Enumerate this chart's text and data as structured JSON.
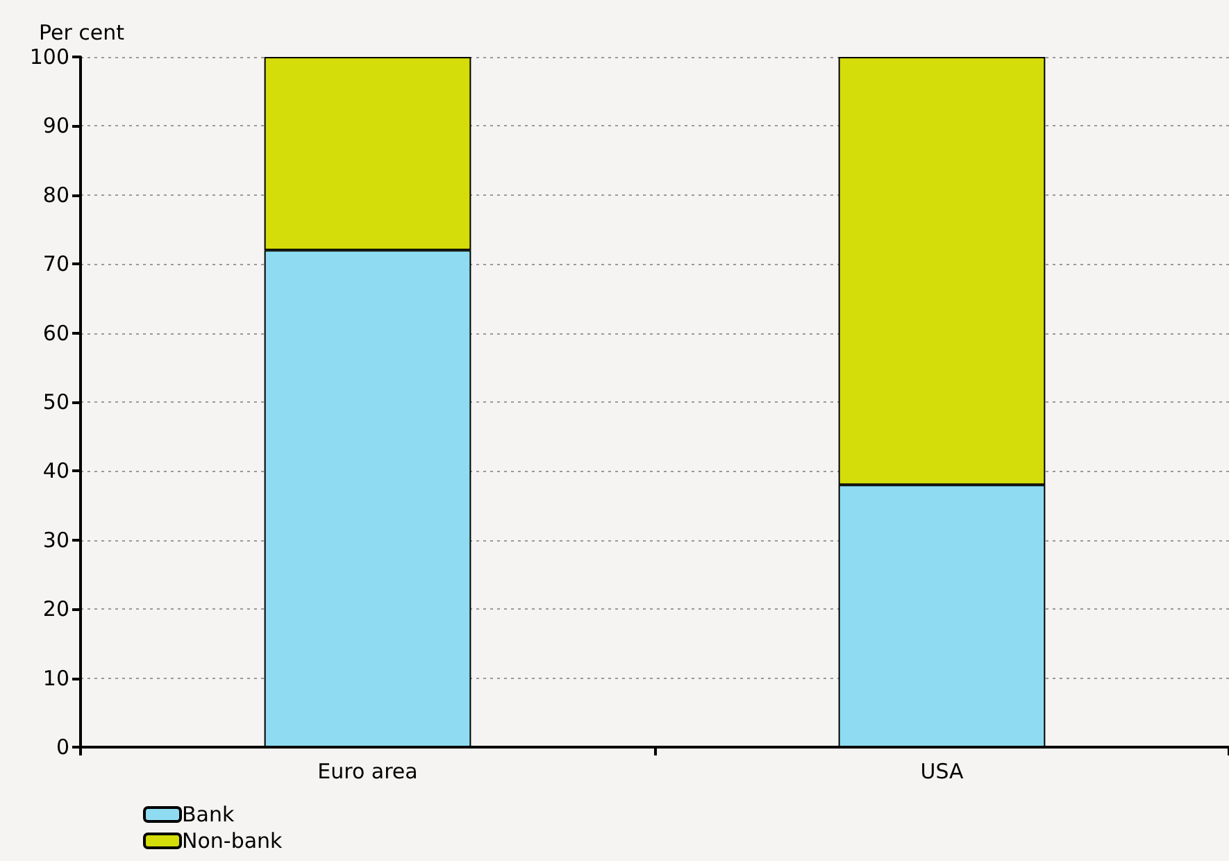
{
  "chart_data": {
    "type": "bar",
    "ylabel": "Per cent",
    "categories": [
      "Euro area",
      "USA"
    ],
    "stacked": true,
    "series": [
      {
        "name": "Bank",
        "color": "#8fdcf2",
        "values": [
          72,
          38
        ]
      },
      {
        "name": "Non-bank",
        "color": "#d4dc0a",
        "values": [
          28,
          62
        ]
      }
    ],
    "ylim": [
      0,
      100
    ],
    "yticks": [
      0,
      10,
      20,
      30,
      40,
      50,
      60,
      70,
      80,
      90,
      100
    ],
    "grid": "y",
    "legend": "bottom left"
  }
}
